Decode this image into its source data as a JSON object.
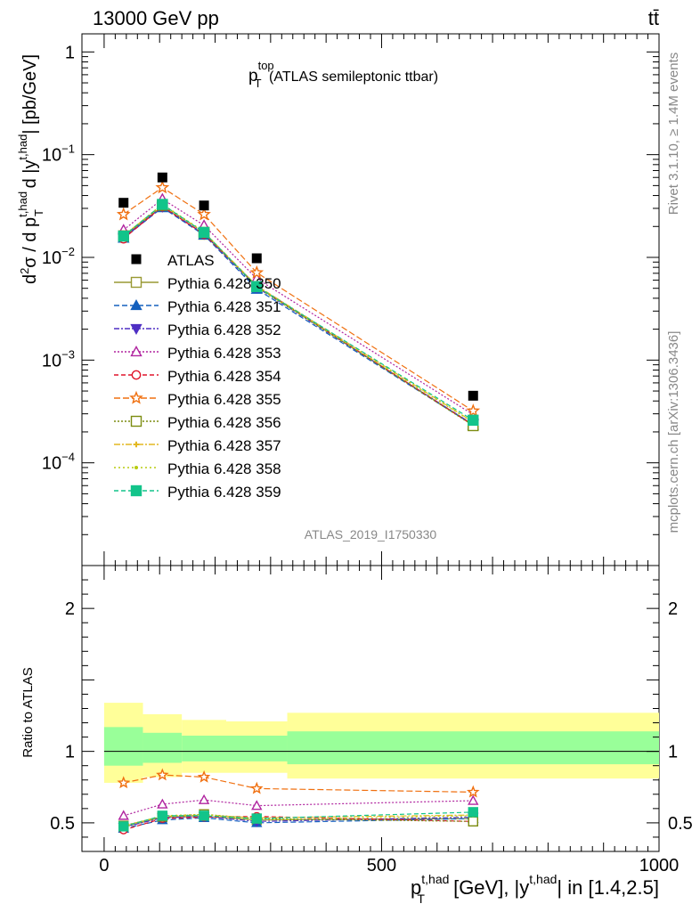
{
  "header": {
    "left": "13000 GeV pp",
    "right": "tt̄"
  },
  "side_labels": {
    "rivet": "Rivet 3.1.10, ≥ 1.4M events",
    "mcplots": "mcplots.cern.ch [arXiv:1306.3436]"
  },
  "analysis_id": "ATLAS_2019_I1750330",
  "chart_data": [
    {
      "type": "line",
      "panel": "main",
      "title": {
        "main": "p",
        "sup": "top",
        "sub": "T",
        "rest": " (ATLAS semileptonic ttbar)"
      },
      "ylabel": "d²σ / d p_T^{t,had} d |y^{t,had}| [pb/GeV]",
      "yscale": "log",
      "ylim": [
        1e-05,
        1.5
      ],
      "xlim": [
        -40,
        1000
      ],
      "y_ticks": [
        {
          "v": 1,
          "label": "1",
          "sup": ""
        },
        {
          "v": 0.1,
          "label": "10",
          "sup": "−1"
        },
        {
          "v": 0.01,
          "label": "10",
          "sup": "−2"
        },
        {
          "v": 0.001,
          "label": "10",
          "sup": "−3"
        },
        {
          "v": 0.0001,
          "label": "10",
          "sup": "−4"
        }
      ],
      "x": [
        35,
        105,
        180,
        275,
        665
      ],
      "data": {
        "name": "ATLAS",
        "y": [
          0.034,
          0.06,
          0.032,
          0.0098,
          0.00045
        ]
      },
      "series": [
        {
          "name": "Pythia 6.428 350",
          "color": "#999933",
          "dash": "",
          "marker": "square-open",
          "y": [
            0.0158,
            0.0315,
            0.0168,
            0.0052,
            0.000235
          ]
        },
        {
          "name": "Pythia 6.428 351",
          "color": "#1560bd",
          "dash": "6,3",
          "marker": "triangle-up",
          "y": [
            0.0154,
            0.0305,
            0.0165,
            0.0049,
            0.000233
          ]
        },
        {
          "name": "Pythia 6.428 352",
          "color": "#4f2fc4",
          "dash": "6,2,2,2",
          "marker": "triangle-down",
          "y": [
            0.0156,
            0.0312,
            0.0169,
            0.0051,
            0.000236
          ]
        },
        {
          "name": "Pythia 6.428 353",
          "color": "#b0249f",
          "dash": "2,2",
          "marker": "triangle-up-open",
          "y": [
            0.0185,
            0.037,
            0.0205,
            0.0062,
            0.000295
          ]
        },
        {
          "name": "Pythia 6.428 354",
          "color": "#e0152b",
          "dash": "5,3",
          "marker": "circle-open",
          "y": [
            0.0152,
            0.0312,
            0.0168,
            0.0053,
            0.000232
          ]
        },
        {
          "name": "Pythia 6.428 355",
          "color": "#f07010",
          "dash": "7,3",
          "marker": "star-open",
          "y": [
            0.0262,
            0.0478,
            0.0262,
            0.0071,
            0.00032
          ]
        },
        {
          "name": "Pythia 6.428 356",
          "color": "#7c8c10",
          "dash": "2,2",
          "marker": "square-open",
          "y": [
            0.0162,
            0.0322,
            0.0175,
            0.0052,
            0.00023
          ]
        },
        {
          "name": "Pythia 6.428 357",
          "color": "#e3b820",
          "dash": "7,2,2,2",
          "marker": "cross",
          "y": [
            0.0163,
            0.0326,
            0.0176,
            0.0053,
            0.00025
          ]
        },
        {
          "name": "Pythia 6.428 358",
          "color": "#b8cc10",
          "dash": "2,3",
          "marker": "dot",
          "y": [
            0.0161,
            0.033,
            0.0178,
            0.0051,
            0.000248
          ]
        },
        {
          "name": "Pythia 6.428 359",
          "color": "#12c48a",
          "dash": "5,3",
          "marker": "square",
          "y": [
            0.0161,
            0.0328,
            0.0175,
            0.0052,
            0.00026
          ]
        }
      ]
    },
    {
      "type": "line",
      "panel": "ratio",
      "ylabel": "Ratio to ATLAS",
      "ylim": [
        0.3,
        2.3
      ],
      "xlim": [
        -40,
        1000
      ],
      "y_ticks": [
        {
          "v": 0.5,
          "label": "0.5"
        },
        {
          "v": 1,
          "label": "1"
        },
        {
          "v": 2,
          "label": "2"
        }
      ],
      "x_ticks": [
        {
          "v": 0,
          "label": "0"
        },
        {
          "v": 500,
          "label": "500"
        },
        {
          "v": 1000,
          "label": "1000"
        }
      ],
      "xlabel": {
        "p": "p",
        "sup": "t,had",
        "sub": "T",
        "mid": " [GeV], |y",
        "sup2": "t,had",
        "end": "| in [1.4,2.5]"
      },
      "bands": [
        {
          "x0": 0,
          "x1": 70,
          "inner": [
            0.9,
            1.17
          ],
          "outer": [
            0.78,
            1.34
          ]
        },
        {
          "x0": 70,
          "x1": 140,
          "inner": [
            0.92,
            1.13
          ],
          "outer": [
            0.82,
            1.26
          ]
        },
        {
          "x0": 140,
          "x1": 220,
          "inner": [
            0.93,
            1.11
          ],
          "outer": [
            0.85,
            1.22
          ]
        },
        {
          "x0": 220,
          "x1": 330,
          "inner": [
            0.93,
            1.11
          ],
          "outer": [
            0.85,
            1.21
          ]
        },
        {
          "x0": 330,
          "x1": 1000,
          "inner": [
            0.91,
            1.14
          ],
          "outer": [
            0.81,
            1.27
          ]
        }
      ],
      "x": [
        35,
        105,
        180,
        275,
        665
      ],
      "series": [
        {
          "name": "Pythia 6.428 350",
          "y": [
            0.47,
            0.54,
            0.545,
            0.52,
            0.53
          ]
        },
        {
          "name": "Pythia 6.428 351",
          "y": [
            0.46,
            0.52,
            0.535,
            0.5,
            0.53
          ]
        },
        {
          "name": "Pythia 6.428 352",
          "y": [
            0.47,
            0.535,
            0.545,
            0.51,
            0.54
          ]
        },
        {
          "name": "Pythia 6.428 353",
          "y": [
            0.55,
            0.63,
            0.66,
            0.62,
            0.655
          ]
        },
        {
          "name": "Pythia 6.428 354",
          "y": [
            0.45,
            0.53,
            0.54,
            0.545,
            0.51
          ]
        },
        {
          "name": "Pythia 6.428 355",
          "y": [
            0.78,
            0.835,
            0.82,
            0.74,
            0.715
          ]
        },
        {
          "name": "Pythia 6.428 356",
          "y": [
            0.48,
            0.545,
            0.56,
            0.53,
            0.51
          ]
        },
        {
          "name": "Pythia 6.428 357",
          "y": [
            0.48,
            0.545,
            0.555,
            0.535,
            0.555
          ]
        },
        {
          "name": "Pythia 6.428 358",
          "y": [
            0.475,
            0.55,
            0.56,
            0.52,
            0.55
          ]
        },
        {
          "name": "Pythia 6.428 359",
          "y": [
            0.475,
            0.55,
            0.55,
            0.53,
            0.575
          ]
        }
      ]
    }
  ]
}
